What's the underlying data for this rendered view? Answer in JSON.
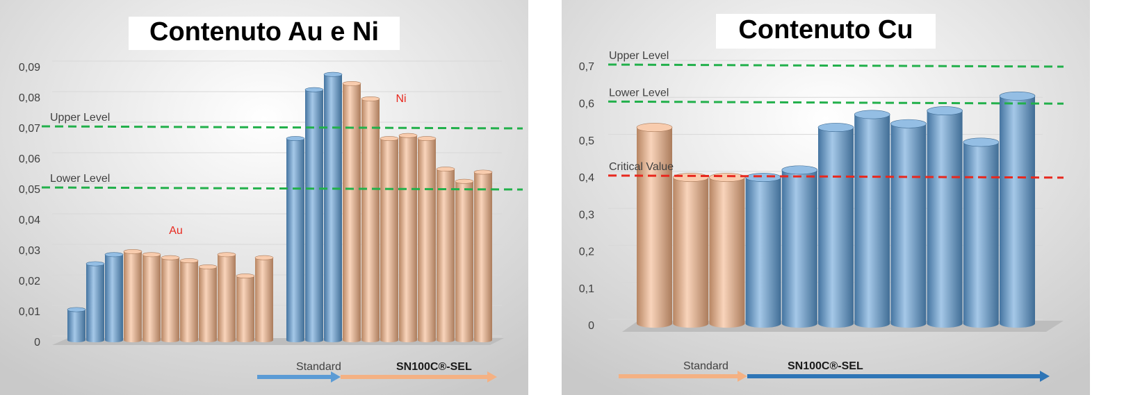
{
  "chart_data": [
    {
      "type": "bar",
      "title": "Contenuto Au e Ni",
      "ylim": [
        0,
        0.09
      ],
      "yticks": [
        0,
        {
          "value": 0.01,
          "label": "0,01"
        },
        {
          "value": 0.02,
          "label": "0,02"
        },
        {
          "value": 0.03,
          "label": "0,03"
        },
        {
          "value": 0.04,
          "label": "0,04"
        },
        {
          "value": 0.05,
          "label": "0,05"
        },
        {
          "value": 0.06,
          "label": "0,06"
        },
        {
          "value": 0.07,
          "label": "0,07"
        },
        {
          "value": 0.08,
          "label": "0,08"
        },
        {
          "value": 0.09,
          "label": "0,09"
        }
      ],
      "grid": true,
      "series": [
        {
          "name": "Au",
          "values": [
            0.01,
            0.025,
            0.028,
            0.029,
            0.028,
            0.027,
            0.026,
            0.024,
            0.028,
            0.021,
            0.027
          ],
          "colors": [
            "#5b9bd5",
            "#5b9bd5",
            "#5b9bd5",
            "#f4b183",
            "#f4b183",
            "#f4b183",
            "#f4b183",
            "#f4b183",
            "#f4b183",
            "#f4b183",
            "#f4b183"
          ]
        },
        {
          "name": "Ni",
          "values": [
            0.066,
            0.082,
            0.087,
            0.084,
            0.079,
            0.066,
            0.067,
            0.066,
            0.056,
            0.052,
            0.055
          ],
          "colors": [
            "#5b9bd5",
            "#5b9bd5",
            "#5b9bd5",
            "#f4b183",
            "#f4b183",
            "#f4b183",
            "#f4b183",
            "#f4b183",
            "#f4b183",
            "#f4b183",
            "#f4b183"
          ]
        }
      ],
      "lines": [
        {
          "label": "Upper Level",
          "value": 0.07,
          "color": "#22b04b"
        },
        {
          "label": "Lower Level",
          "value": 0.05,
          "color": "#22b04b"
        }
      ],
      "arrows": [
        {
          "label": "Standard",
          "color": "#5b9bd5"
        },
        {
          "label": "SN100C®-SEL",
          "color": "#f4b183"
        }
      ]
    },
    {
      "type": "bar",
      "title": "Contenuto Cu",
      "ylim": [
        0,
        0.7
      ],
      "yticks": [
        0,
        {
          "value": 0.1,
          "label": "0,1"
        },
        {
          "value": 0.2,
          "label": "0,2"
        },
        {
          "value": 0.3,
          "label": "0,3"
        },
        {
          "value": 0.4,
          "label": "0,4"
        },
        {
          "value": 0.5,
          "label": "0,5"
        },
        {
          "value": 0.6,
          "label": "0,6"
        },
        {
          "value": 0.7,
          "label": "0,7"
        }
      ],
      "grid": true,
      "series": [
        {
          "values": [
            0.53,
            0.395,
            0.395,
            0.395,
            0.415,
            0.53,
            0.565,
            0.54,
            0.575,
            0.49,
            0.615
          ],
          "colors": [
            "#f4b183",
            "#f4b183",
            "#f4b183",
            "#5b9bd5",
            "#5b9bd5",
            "#5b9bd5",
            "#5b9bd5",
            "#5b9bd5",
            "#5b9bd5",
            "#5b9bd5",
            "#5b9bd5"
          ]
        }
      ],
      "lines": [
        {
          "label": "Upper Level",
          "value": 0.7,
          "color": "#22b04b"
        },
        {
          "label": "Lower Level",
          "value": 0.6,
          "color": "#22b04b"
        },
        {
          "label": "Critical Value",
          "value": 0.4,
          "color": "#e8281e"
        }
      ],
      "arrows": [
        {
          "label": "Standard",
          "color": "#f4b183"
        },
        {
          "label": "SN100C®-SEL",
          "color": "#2e75b6"
        }
      ]
    }
  ]
}
